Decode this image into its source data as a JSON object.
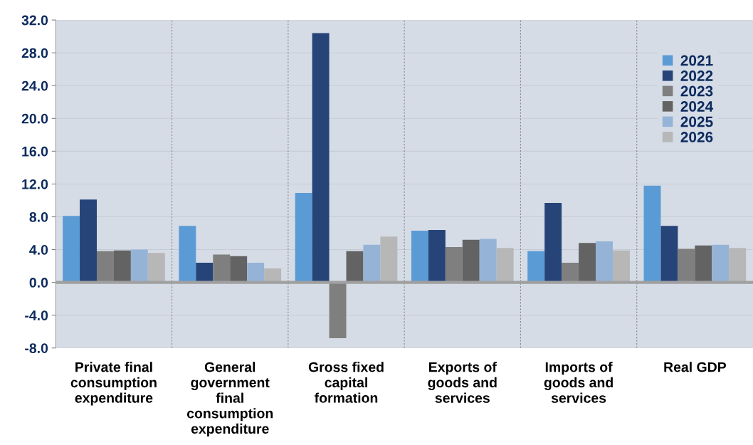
{
  "chart_data": {
    "type": "bar",
    "categories": [
      "Private final\nconsumption\nexpenditure",
      "General\ngovernment\nfinal\nconsumption\nexpenditure",
      "Gross fixed\ncapital\nformation",
      "Exports of\ngoods and\nservices",
      "Imports of\ngoods and\nservices",
      "Real GDP"
    ],
    "series": [
      {
        "name": "2021",
        "color": "#5b9bd5",
        "values": [
          8.1,
          6.9,
          10.9,
          6.3,
          3.8,
          11.8
        ]
      },
      {
        "name": "2022",
        "color": "#264478",
        "values": [
          10.1,
          2.4,
          30.4,
          6.4,
          9.7,
          6.9
        ]
      },
      {
        "name": "2023",
        "color": "#7f7f7f",
        "values": [
          3.8,
          3.4,
          -6.8,
          4.3,
          2.4,
          4.1
        ]
      },
      {
        "name": "2024",
        "color": "#636363",
        "values": [
          3.9,
          3.2,
          3.8,
          5.2,
          4.8,
          4.5
        ]
      },
      {
        "name": "2025",
        "color": "#95b3d7",
        "values": [
          4.0,
          2.4,
          4.6,
          5.3,
          5.0,
          4.6
        ]
      },
      {
        "name": "2026",
        "color": "#b7b7b7",
        "values": [
          3.6,
          1.7,
          5.6,
          4.2,
          3.9,
          4.2
        ]
      }
    ],
    "ylim": [
      -8,
      32
    ],
    "yticks": [
      {
        "value": -8,
        "label": "-8.0"
      },
      {
        "value": -4,
        "label": "-4.0"
      },
      {
        "value": 0,
        "label": "0.0"
      },
      {
        "value": 4,
        "label": "4.0"
      },
      {
        "value": 8,
        "label": "8.0"
      },
      {
        "value": 12,
        "label": "12.0"
      },
      {
        "value": 16,
        "label": "16.0"
      },
      {
        "value": 20,
        "label": "20.0"
      },
      {
        "value": 24,
        "label": "24.0"
      },
      {
        "value": 28,
        "label": "28.0"
      },
      {
        "value": 32,
        "label": "32.0"
      }
    ],
    "grid": true,
    "legend": "top right"
  }
}
